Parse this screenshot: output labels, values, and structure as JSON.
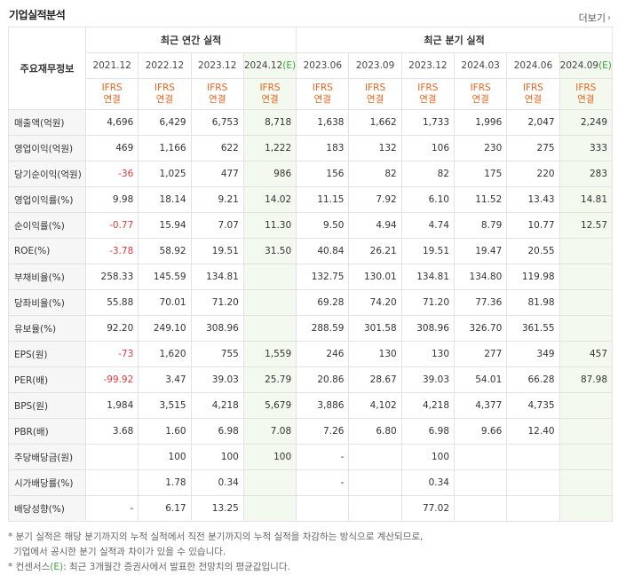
{
  "title": "기업실적분석",
  "more_label": "더보기",
  "header": {
    "label": "주요재무정보",
    "annual_group": "최근 연간 실적",
    "quarter_group": "최근 분기 실적",
    "annual_periods": [
      "2021.12",
      "2022.12",
      "2023.12",
      "2024.12"
    ],
    "quarter_periods": [
      "2023.06",
      "2023.09",
      "2023.12",
      "2024.03",
      "2024.06",
      "2024.09"
    ],
    "est_mark": "(E)",
    "ifrs": "IFRS",
    "basis": "연결"
  },
  "rows": [
    {
      "label": "매출액(억원)",
      "values": [
        "4,696",
        "6,429",
        "6,753",
        "8,718",
        "1,638",
        "1,662",
        "1,733",
        "1,996",
        "2,047",
        "2,249"
      ]
    },
    {
      "label": "영업이익(억원)",
      "values": [
        "469",
        "1,166",
        "622",
        "1,222",
        "183",
        "132",
        "106",
        "230",
        "275",
        "333"
      ]
    },
    {
      "label": "당기순이익(억원)",
      "values": [
        "-36",
        "1,025",
        "477",
        "986",
        "156",
        "82",
        "82",
        "175",
        "220",
        "283"
      ]
    },
    {
      "label": "영업이익률(%)",
      "values": [
        "9.98",
        "18.14",
        "9.21",
        "14.02",
        "11.15",
        "7.92",
        "6.10",
        "11.52",
        "13.43",
        "14.81"
      ]
    },
    {
      "label": "순이익률(%)",
      "values": [
        "-0.77",
        "15.94",
        "7.07",
        "11.30",
        "9.50",
        "4.94",
        "4.74",
        "8.79",
        "10.77",
        "12.57"
      ]
    },
    {
      "label": "ROE(%)",
      "values": [
        "-3.78",
        "58.92",
        "19.51",
        "31.50",
        "40.84",
        "26.21",
        "19.51",
        "19.47",
        "20.55",
        ""
      ]
    },
    {
      "label": "부채비율(%)",
      "values": [
        "258.33",
        "145.59",
        "134.81",
        "",
        "132.75",
        "130.01",
        "134.81",
        "134.80",
        "119.98",
        ""
      ]
    },
    {
      "label": "당좌비율(%)",
      "values": [
        "55.88",
        "70.01",
        "71.20",
        "",
        "69.28",
        "74.20",
        "71.20",
        "77.36",
        "81.98",
        ""
      ]
    },
    {
      "label": "유보율(%)",
      "values": [
        "92.20",
        "249.10",
        "308.96",
        "",
        "288.59",
        "301.58",
        "308.96",
        "326.70",
        "361.55",
        ""
      ]
    },
    {
      "label": "EPS(원)",
      "values": [
        "-73",
        "1,620",
        "755",
        "1,559",
        "246",
        "130",
        "130",
        "277",
        "349",
        "457"
      ]
    },
    {
      "label": "PER(배)",
      "values": [
        "-99.92",
        "3.47",
        "39.03",
        "25.79",
        "20.86",
        "28.67",
        "39.03",
        "54.01",
        "66.28",
        "87.98"
      ]
    },
    {
      "label": "BPS(원)",
      "values": [
        "1,984",
        "3,515",
        "4,218",
        "5,679",
        "3,886",
        "4,102",
        "4,218",
        "4,377",
        "4,735",
        ""
      ]
    },
    {
      "label": "PBR(배)",
      "values": [
        "3.68",
        "1.60",
        "6.98",
        "7.08",
        "7.26",
        "6.80",
        "6.98",
        "9.66",
        "12.40",
        ""
      ]
    },
    {
      "label": "주당배당금(원)",
      "values": [
        "",
        "100",
        "100",
        "100",
        "-",
        "",
        "100",
        "",
        "",
        ""
      ]
    },
    {
      "label": "시가배당률(%)",
      "values": [
        "",
        "1.78",
        "0.34",
        "",
        "-",
        "",
        "0.34",
        "",
        "",
        ""
      ]
    },
    {
      "label": "배당성향(%)",
      "values": [
        "-",
        "6.17",
        "13.25",
        "",
        "",
        "",
        "77.02",
        "",
        "",
        ""
      ]
    }
  ],
  "notes": {
    "line1": "* 분기 실적은 해당 분기까지의 누적 실적에서 직전 분기까지의 누적 실적을 차감하는 방식으로 계산되므로,",
    "line2": "기업에서 공시한 분기 실적과 차이가 있을 수 있습니다.",
    "line3_prefix": "* 컨센서스",
    "line3_mark": "(E)",
    "line3_suffix": ": 최근 3개월간 증권사에서 발표한 전망치의 평균값입니다."
  },
  "colors": {
    "ifrs": "#e5651f",
    "estimate": "#3aa33a",
    "negative": "#e03838",
    "estimate_bg": "#f3f9ef",
    "label_bg": "#f6f6f6"
  }
}
